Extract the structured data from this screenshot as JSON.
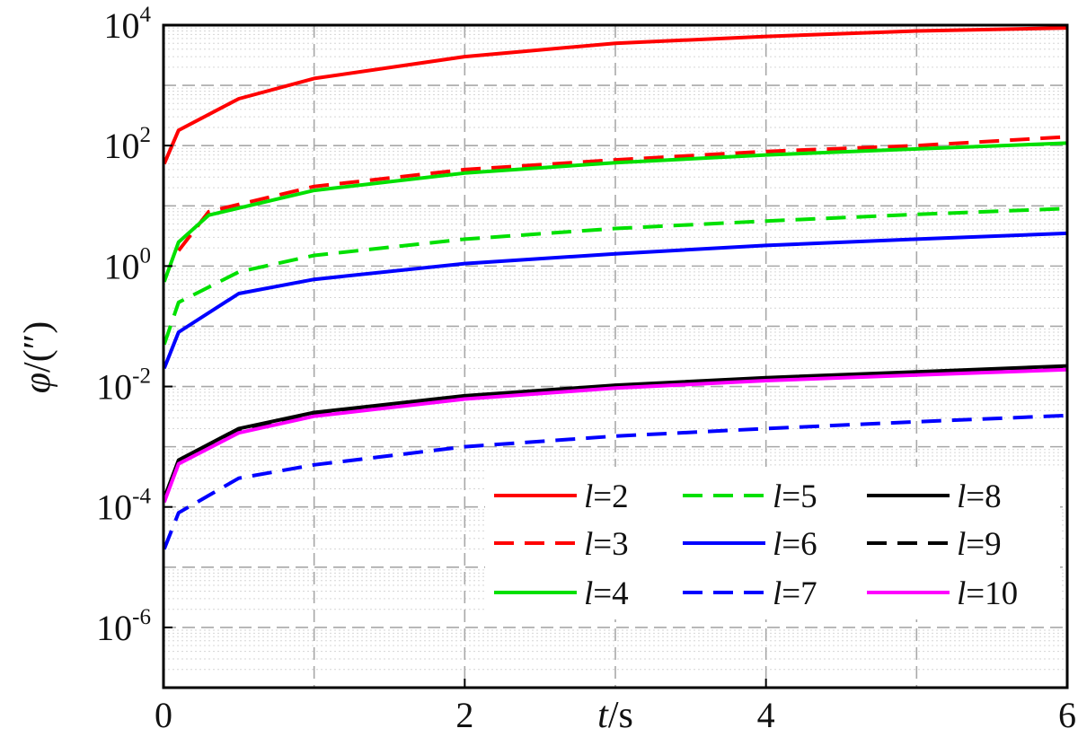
{
  "chart_data": {
    "type": "line",
    "xlabel_var": "t",
    "xlabel_unit": "s",
    "ylabel_var": "φ",
    "ylabel_unit": "(″)",
    "xlim": [
      0,
      6
    ],
    "ylim": [
      1e-07,
      10000.0
    ],
    "yscale": "log",
    "x_ticks": [
      "0",
      "2",
      "4",
      "6"
    ],
    "y_ticks": [
      {
        "base": "10",
        "exp": "4"
      },
      {
        "base": "10",
        "exp": "2"
      },
      {
        "base": "10",
        "exp": "0"
      },
      {
        "base": "10",
        "exp": "-2"
      },
      {
        "base": "10",
        "exp": "-4"
      },
      {
        "base": "10",
        "exp": "-6"
      }
    ],
    "grid": true,
    "legend_position": "lower-right",
    "series": [
      {
        "name": "l=2",
        "color": "#ff0000",
        "dash": "solid",
        "points": [
          [
            0.005,
            50
          ],
          [
            0.1,
            180
          ],
          [
            0.5,
            600
          ],
          [
            1,
            1300
          ],
          [
            2,
            3000
          ],
          [
            3,
            5000
          ],
          [
            4,
            6500
          ],
          [
            5,
            8000
          ],
          [
            6,
            9000
          ]
        ]
      },
      {
        "name": "l=3",
        "color": "#ff0000",
        "dash": "dashed",
        "points": [
          [
            0.1,
            1.8
          ],
          [
            0.3,
            8
          ],
          [
            1,
            21
          ],
          [
            2,
            40
          ],
          [
            3,
            58
          ],
          [
            4,
            80
          ],
          [
            5,
            100
          ],
          [
            6,
            140
          ]
        ]
      },
      {
        "name": "l=4",
        "color": "#00e000",
        "dash": "solid",
        "points": [
          [
            0.005,
            0.55
          ],
          [
            0.1,
            2.5
          ],
          [
            0.3,
            7
          ],
          [
            1,
            18
          ],
          [
            2,
            35
          ],
          [
            3,
            52
          ],
          [
            4,
            70
          ],
          [
            5,
            88
          ],
          [
            6,
            110
          ]
        ]
      },
      {
        "name": "l=5",
        "color": "#00e000",
        "dash": "dashed",
        "points": [
          [
            0.005,
            0.05
          ],
          [
            0.1,
            0.25
          ],
          [
            0.5,
            0.8
          ],
          [
            1,
            1.5
          ],
          [
            2,
            2.8
          ],
          [
            3,
            4.2
          ],
          [
            4,
            5.6
          ],
          [
            5,
            7.2
          ],
          [
            6,
            9
          ]
        ]
      },
      {
        "name": "l=6",
        "color": "#0000ff",
        "dash": "solid",
        "points": [
          [
            0.005,
            0.02
          ],
          [
            0.1,
            0.08
          ],
          [
            0.5,
            0.35
          ],
          [
            1,
            0.6
          ],
          [
            2,
            1.1
          ],
          [
            3,
            1.6
          ],
          [
            4,
            2.2
          ],
          [
            5,
            2.8
          ],
          [
            6,
            3.5
          ]
        ]
      },
      {
        "name": "l=7",
        "color": "#0000ff",
        "dash": "dashed",
        "points": [
          [
            0.005,
            2e-05
          ],
          [
            0.1,
            8e-05
          ],
          [
            0.5,
            0.0003
          ],
          [
            1,
            0.0005
          ],
          [
            2,
            0.001
          ],
          [
            3,
            0.0015
          ],
          [
            4,
            0.002
          ],
          [
            5,
            0.0026
          ],
          [
            6,
            0.0033
          ]
        ]
      },
      {
        "name": "l=8",
        "color": "#000000",
        "dash": "solid",
        "points": [
          [
            0.005,
            0.00014
          ],
          [
            0.1,
            0.0006
          ],
          [
            0.5,
            0.002
          ],
          [
            1,
            0.0037
          ],
          [
            2,
            0.007
          ],
          [
            3,
            0.0105
          ],
          [
            4,
            0.014
          ],
          [
            5,
            0.0175
          ],
          [
            6,
            0.022
          ]
        ]
      },
      {
        "name": "l=9",
        "color": "#000000",
        "dash": "dashed",
        "points": [
          [
            0.005,
            0.000135
          ],
          [
            0.1,
            0.00058
          ],
          [
            0.5,
            0.0019
          ],
          [
            1,
            0.0035
          ],
          [
            2,
            0.0068
          ],
          [
            3,
            0.0102
          ],
          [
            4,
            0.0136
          ],
          [
            5,
            0.017
          ],
          [
            6,
            0.021
          ]
        ]
      },
      {
        "name": "l=10",
        "color": "#ff00ff",
        "dash": "solid",
        "points": [
          [
            0.005,
            0.00012
          ],
          [
            0.1,
            0.00052
          ],
          [
            0.5,
            0.0017
          ],
          [
            1,
            0.0032
          ],
          [
            2,
            0.0062
          ],
          [
            3,
            0.0094
          ],
          [
            4,
            0.0125
          ],
          [
            5,
            0.0155
          ],
          [
            6,
            0.019
          ]
        ]
      }
    ]
  }
}
